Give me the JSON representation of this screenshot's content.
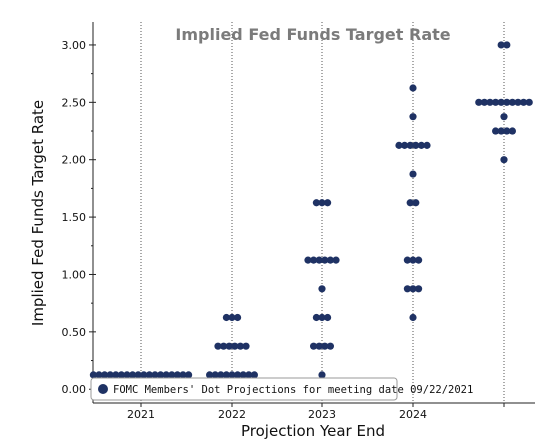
{
  "chart_data": {
    "type": "scatter",
    "title": "Implied Fed Funds Target Rate",
    "xlabel": "Projection Year End",
    "ylabel": "Implied Fed Funds Target Rate",
    "x_categories": [
      "2021",
      "2022",
      "2023",
      "2024",
      ""
    ],
    "yticks": [
      "0.00",
      "0.50",
      "1.00",
      "1.50",
      "2.00",
      "2.50",
      "3.00"
    ],
    "ylim": [
      -0.12,
      3.2
    ],
    "grid": "vertical dotted at category centers",
    "marker_color": "#1f3264",
    "legend": {
      "position": "bottom-left",
      "label": "FOMC Members' Dot Projections for meeting date 09/22/2021"
    },
    "series": [
      {
        "name": "FOMC Members' Dot Projections for meeting date 09/22/2021",
        "points": [
          {
            "x": "2021",
            "rows": [
              {
                "rate": 0.125,
                "count": 18
              }
            ]
          },
          {
            "x": "2022",
            "rows": [
              {
                "rate": 0.125,
                "count": 9
              },
              {
                "rate": 0.375,
                "count": 6
              },
              {
                "rate": 0.625,
                "count": 3
              }
            ]
          },
          {
            "x": "2023",
            "rows": [
              {
                "rate": 0.125,
                "count": 1
              },
              {
                "rate": 0.375,
                "count": 4
              },
              {
                "rate": 0.625,
                "count": 3
              },
              {
                "rate": 0.875,
                "count": 1
              },
              {
                "rate": 1.125,
                "count": 6
              },
              {
                "rate": 1.625,
                "count": 3
              }
            ]
          },
          {
            "x": "2024",
            "rows": [
              {
                "rate": 0.625,
                "count": 1
              },
              {
                "rate": 0.875,
                "count": 3
              },
              {
                "rate": 1.125,
                "count": 3
              },
              {
                "rate": 1.625,
                "count": 2
              },
              {
                "rate": 1.875,
                "count": 1
              },
              {
                "rate": 2.125,
                "count": 6
              },
              {
                "rate": 2.375,
                "count": 1
              },
              {
                "rate": 2.625,
                "count": 1
              }
            ]
          },
          {
            "x": "",
            "rows": [
              {
                "rate": 2.0,
                "count": 1
              },
              {
                "rate": 2.25,
                "count": 4
              },
              {
                "rate": 2.375,
                "count": 1
              },
              {
                "rate": 2.5,
                "count": 10
              },
              {
                "rate": 3.0,
                "count": 2
              }
            ]
          }
        ]
      }
    ]
  }
}
